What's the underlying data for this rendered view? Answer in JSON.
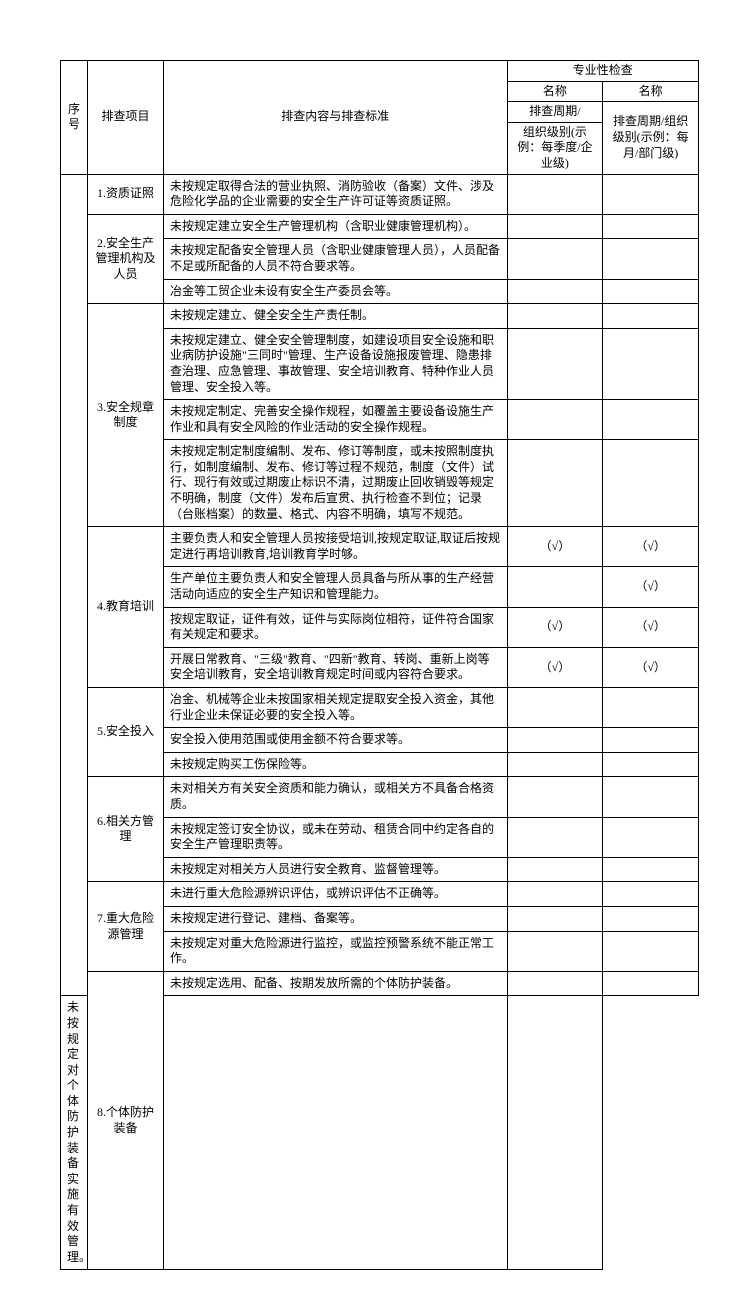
{
  "header": {
    "special_check": "专业性检查",
    "name_a": "名称",
    "name_b": "名称",
    "cycle": "排查周期/",
    "seq": "序号",
    "item": "排查项目",
    "content_std": "排查内容与排查标准",
    "org_level_a": "组织级别(示例：每季度/企业级)",
    "org_level_b": "排查周期/组织级别(示例：每月/部门级)"
  },
  "check_mark": "（√）",
  "items": {
    "i1": {
      "title": "1.资质证照",
      "r1": "未按规定取得合法的营业执照、消防验收（备案）文件、涉及危险化学品的企业需要的安全生产许可证等资质证照。"
    },
    "i2": {
      "title": "2.安全生产管理机构及人员",
      "r1": "未按规定建立安全生产管理机构（含职业健康管理机构）。",
      "r2": "未按规定配备安全管理人员（含职业健康管理人员），人员配备不足或所配备的人员不符合要求等。",
      "r3": "冶金等工贸企业未设有安全生产委员会等。"
    },
    "i3": {
      "title": "3.安全规章制度",
      "r1": "未按规定建立、健全安全生产责任制。",
      "r2": "未按规定建立、健全安全管理制度，如建设项目安全设施和职业病防护设施\"三同时\"管理、生产设备设施报废管理、隐患排查治理、应急管理、事故管理、安全培训教育、特种作业人员管理、安全投入等。",
      "r3": "未按规定制定、完善安全操作规程，如覆盖主要设备设施生产作业和具有安全风险的作业活动的安全操作规程。",
      "r4": "未按规定制定制度编制、发布、修订等制度，或未按照制度执行，如制度编制、发布、修订等过程不规范，制度（文件）试行、现行有效或过期废止标识不清，过期废止回收销毁等规定不明确，制度（文件）发布后宣贯、执行检查不到位；记录（台账档案）的数量、格式、内容不明确，填写不规范。"
    },
    "i4": {
      "title": "4.教育培训",
      "r1": "主要负责人和安全管理人员按接受培训,按规定取证,取证后按规定进行再培训教育,培训教育学时够。",
      "r2": "生产单位主要负责人和安全管理人员具备与所从事的生产经营活动向适应的安全生产知识和管理能力。",
      "r3": "按规定取证，证件有效，证件与实际岗位相符，证件符合国家有关规定和要求。",
      "r4": "开展日常教育、\"三级\"教育、\"四新\"教育、转岗、重新上岗等安全培训教育，安全培训教育规定时间或内容符合要求。"
    },
    "i5": {
      "title": "5.安全投入",
      "r1": "冶金、机械等企业未按国家相关规定提取安全投入资金，其他行业企业未保证必要的安全投入等。",
      "r2": "安全投入使用范围或使用金额不符合要求等。",
      "r3": "未按规定购买工伤保险等。"
    },
    "i6": {
      "title": "6.相关方管理",
      "r1": "未对相关方有关安全资质和能力确认，或相关方不具备合格资质。",
      "r2": "未按规定签订安全协议，或未在劳动、租赁合同中约定各自的安全生产管理职责等。",
      "r3": "未按规定对相关方人员进行安全教育、监督管理等。"
    },
    "i7": {
      "title": "7.重大危险源管理",
      "r1": "未进行重大危险源辨识评估，或辨识评估不正确等。",
      "r2": "未按规定进行登记、建档、备案等。",
      "r3": "未按规定对重大危险源进行监控，或监控预警系统不能正常工作。"
    },
    "i8": {
      "title": "8.个体防护装备",
      "r1": "未按规定选用、配备、按期发放所需的个体防护装备。",
      "r2": "未按规定对个体防护装备实施有效管理。"
    }
  },
  "colors": {
    "border": "#000000",
    "text": "#000000",
    "background": "#ffffff"
  },
  "typography": {
    "body_fontsize": 12,
    "font_family": "SimSun"
  }
}
